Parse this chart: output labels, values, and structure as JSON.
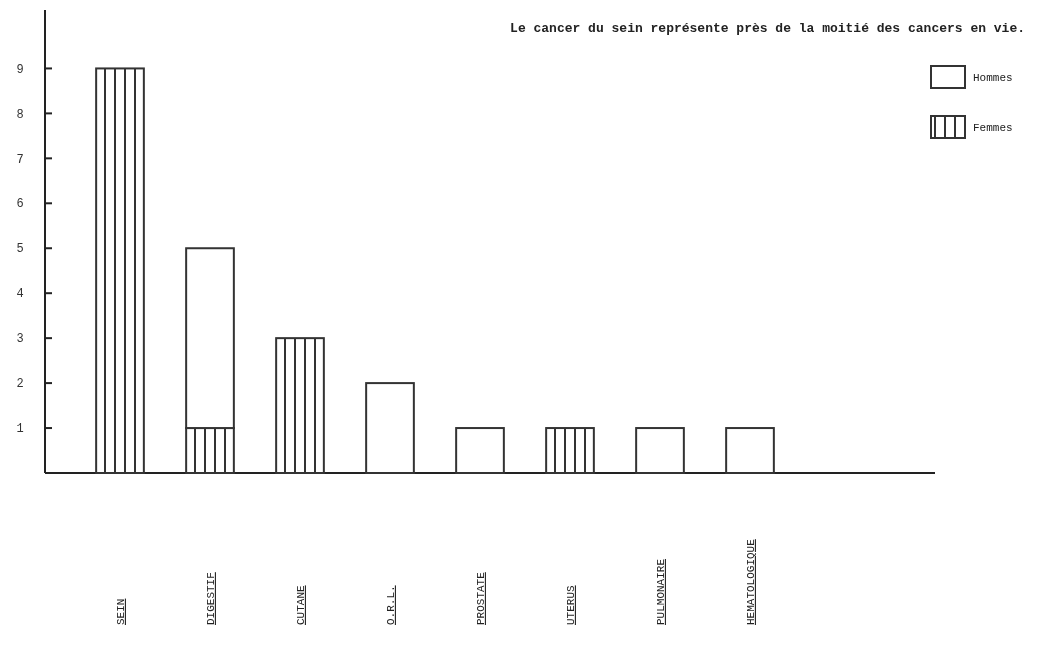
{
  "chart_data": {
    "type": "bar",
    "stacked": true,
    "title": "Le cancer du sein représente près de la moitié des cancers en vie.",
    "categories": [
      "SEIN",
      "DIGESTIF",
      "CUTANE",
      "O.R.L.",
      "PROSTATE",
      "UTERUS",
      "PULMONAIRE",
      "HEMATOLOGIQUE"
    ],
    "series": [
      {
        "name": "Femmes",
        "color": "#333333",
        "values": [
          9,
          1,
          3,
          0,
          0,
          1,
          0,
          0
        ]
      },
      {
        "name": "Hommes",
        "color": "#ffffff",
        "values": [
          0,
          4,
          0,
          2,
          1,
          0,
          1,
          1
        ]
      }
    ],
    "ylim": [
      0,
      10.3
    ],
    "yticks": [
      1,
      2,
      3,
      4,
      5,
      6,
      7,
      8,
      9
    ],
    "legend": "top right",
    "grid": false
  }
}
